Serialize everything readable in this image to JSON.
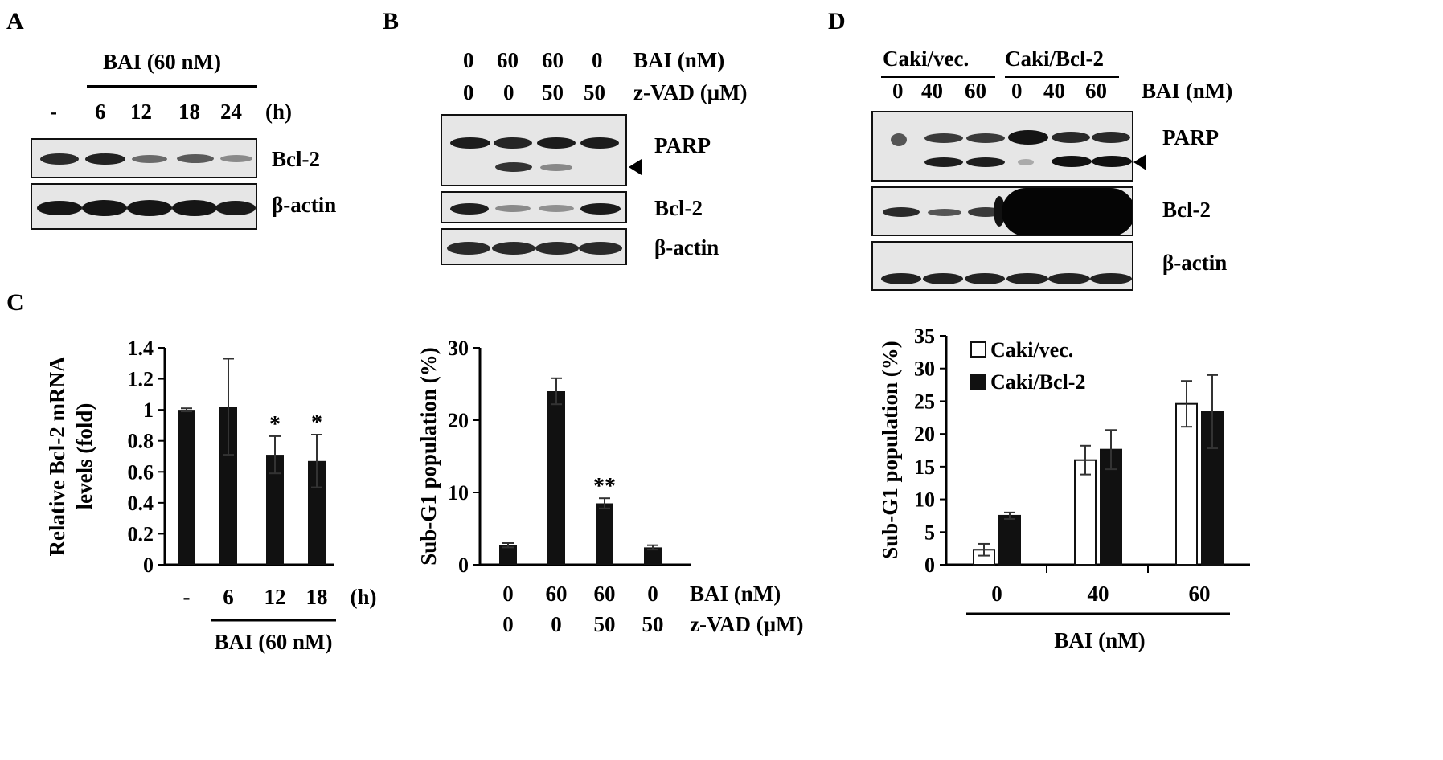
{
  "panels": {
    "A": {
      "label": "A",
      "treatment": "BAI (60 nM)",
      "lanes": [
        "-",
        "6",
        "12",
        "18",
        "24"
      ],
      "lane_unit": "(h)",
      "blots": [
        "Bcl-2",
        "β-actin"
      ],
      "band_intensity": {
        "Bcl-2": [
          0.75,
          0.8,
          0.45,
          0.5,
          0.35
        ],
        "β-actin": [
          0.95,
          0.95,
          0.95,
          0.95,
          0.95
        ]
      }
    },
    "B": {
      "label": "B",
      "bai_values": [
        "0",
        "60",
        "60",
        "0"
      ],
      "bai_label": "BAI (nM)",
      "zvad_values": [
        "0",
        "0",
        "50",
        "50"
      ],
      "zvad_label": "z-VAD (μM)",
      "blots": [
        "PARP",
        "Bcl-2",
        "β-actin"
      ]
    },
    "C": {
      "label": "C"
    },
    "D": {
      "label": "D",
      "groups": [
        "Caki/vec.",
        "Caki/Bcl-2"
      ],
      "lanes": [
        "0",
        "40",
        "60",
        "0",
        "40",
        "60"
      ],
      "lane_label": "BAI (nM)",
      "blots": [
        "PARP",
        "Bcl-2",
        "β-actin"
      ]
    }
  },
  "chart_data": [
    {
      "type": "bar",
      "ylabel_line1": "Relative  Bcl-2 mRNA",
      "ylabel_line2": "levels (fold)",
      "categories": [
        "-",
        "6",
        "12",
        "18"
      ],
      "category_unit": "(h)",
      "group_label": "BAI (60 nM)",
      "values": [
        1.0,
        1.02,
        0.71,
        0.67
      ],
      "errors": [
        0.01,
        0.31,
        0.12,
        0.17
      ],
      "significance": [
        "",
        "",
        "*",
        "*"
      ],
      "yticks": [
        "1.4",
        "1.2",
        "1",
        "0.8",
        "0.6",
        "0.4",
        "0.2",
        "0"
      ],
      "ylim": [
        0,
        1.4
      ],
      "color": "#111111"
    },
    {
      "type": "bar",
      "ylabel": "Sub-G1  population  (%)",
      "bai_values": [
        "0",
        "60",
        "60",
        "0"
      ],
      "bai_label": "BAI (nM)",
      "zvad_values": [
        "0",
        "0",
        "50",
        "50"
      ],
      "zvad_label": "z-VAD (μM)",
      "values": [
        2.7,
        24.0,
        8.5,
        2.4
      ],
      "errors": [
        0.3,
        1.8,
        0.7,
        0.3
      ],
      "significance": [
        "",
        "",
        "**",
        ""
      ],
      "yticks": [
        "30",
        "20",
        "10",
        "0"
      ],
      "ylim": [
        0,
        30
      ],
      "color": "#111111"
    },
    {
      "type": "bar",
      "ylabel": "Sub-G1  population  (%)",
      "categories": [
        "0",
        "40",
        "60"
      ],
      "xlabel": "BAI (nM)",
      "series": [
        {
          "name": "Caki/vec.",
          "values": [
            2.3,
            16.0,
            24.6
          ],
          "errors": [
            0.9,
            2.2,
            3.5
          ],
          "color": "#ffffff"
        },
        {
          "name": "Caki/Bcl-2",
          "values": [
            7.5,
            17.6,
            23.4
          ],
          "errors": [
            0.5,
            3.0,
            5.6
          ],
          "color": "#111111"
        }
      ],
      "yticks": [
        "35",
        "30",
        "25",
        "20",
        "15",
        "10",
        "5",
        "0"
      ],
      "ylim": [
        0,
        35
      ],
      "legend": "top-left"
    }
  ]
}
